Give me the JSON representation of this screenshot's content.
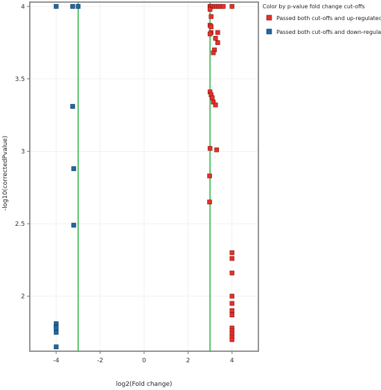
{
  "chart_data": {
    "type": "scatter",
    "xlabel": "log2(Fold change)",
    "ylabel": "-log10(correctedPvalue)",
    "xlim": [
      -5.2,
      5.2
    ],
    "ylim": [
      1.62,
      4.03
    ],
    "x_ticks": [
      -4,
      -2,
      0,
      2,
      4
    ],
    "x_tick_labels": [
      "-4",
      "-2",
      "0",
      "2",
      "4"
    ],
    "y_ticks": [
      2,
      2.5,
      3,
      3.5,
      4
    ],
    "y_tick_labels": [
      "2",
      "2.5",
      "3",
      "3.5",
      "4"
    ],
    "grid": true,
    "cutoff_lines": {
      "x": [
        -3,
        3
      ],
      "color": "#35b44a"
    },
    "legend": {
      "title": "Color by p-value fold change cut-offs",
      "placement": "top-right",
      "entries": [
        {
          "label": "Passed both cut-offs and up-regulated",
          "color": "#e8302a"
        },
        {
          "label": "Passed both cut-offs and down-regulated",
          "color": "#1f6aa5"
        }
      ]
    },
    "series": [
      {
        "key": "up",
        "color": "#e8302a",
        "points": [
          [
            3.0,
            4.0
          ],
          [
            3.05,
            4.0
          ],
          [
            3.1,
            4.0
          ],
          [
            3.2,
            4.0
          ],
          [
            3.3,
            4.0
          ],
          [
            3.4,
            4.0
          ],
          [
            3.5,
            4.0
          ],
          [
            3.6,
            4.0
          ],
          [
            4.0,
            4.0
          ],
          [
            3.0,
            3.98
          ],
          [
            3.05,
            3.93
          ],
          [
            3.0,
            3.87
          ],
          [
            3.05,
            3.86
          ],
          [
            3.05,
            3.82
          ],
          [
            3.0,
            3.81
          ],
          [
            3.35,
            3.82
          ],
          [
            3.25,
            3.78
          ],
          [
            3.35,
            3.75
          ],
          [
            3.2,
            3.7
          ],
          [
            3.15,
            3.68
          ],
          [
            3.0,
            3.41
          ],
          [
            3.05,
            3.39
          ],
          [
            3.1,
            3.37
          ],
          [
            3.15,
            3.34
          ],
          [
            3.25,
            3.32
          ],
          [
            3.0,
            3.02
          ],
          [
            3.3,
            3.01
          ],
          [
            2.98,
            2.83
          ],
          [
            2.98,
            2.65
          ],
          [
            4.0,
            2.3
          ],
          [
            4.0,
            2.26
          ],
          [
            4.0,
            2.16
          ],
          [
            4.0,
            2.0
          ],
          [
            4.0,
            1.95
          ],
          [
            4.0,
            1.9
          ],
          [
            4.0,
            1.87
          ],
          [
            4.0,
            1.78
          ],
          [
            4.0,
            1.76
          ],
          [
            4.0,
            1.74
          ],
          [
            4.0,
            1.72
          ],
          [
            4.0,
            1.7
          ]
        ]
      },
      {
        "key": "down",
        "color": "#1f6aa5",
        "points": [
          [
            -4.0,
            4.0
          ],
          [
            -3.25,
            4.0
          ],
          [
            -3.0,
            4.0
          ],
          [
            -3.25,
            3.31
          ],
          [
            -3.2,
            2.88
          ],
          [
            -3.2,
            2.49
          ],
          [
            -4.0,
            1.81
          ],
          [
            -4.0,
            1.79
          ],
          [
            -4.0,
            1.78
          ],
          [
            -4.0,
            1.75
          ],
          [
            -4.0,
            1.65
          ]
        ]
      }
    ]
  }
}
